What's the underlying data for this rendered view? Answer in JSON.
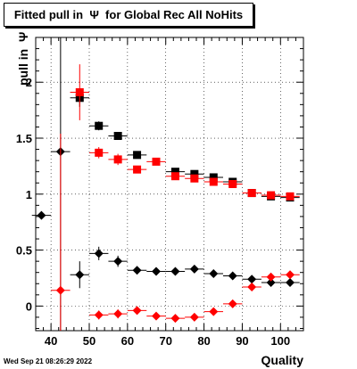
{
  "chart_data": {
    "type": "scatter",
    "title": "Fitted pull in  Ψ  for Global Rec All NoHits",
    "xlabel": "Quality",
    "ylabel": "pull in  Ψ",
    "xlim": [
      36,
      106
    ],
    "ylim": [
      -0.22,
      2.4
    ],
    "xticks": [
      40,
      50,
      60,
      70,
      80,
      90,
      100
    ],
    "yticks": [
      0,
      0.5,
      1,
      1.5,
      2
    ],
    "ytick_labels": [
      "0",
      "0.5",
      "1",
      "1.5",
      "2"
    ],
    "grid": true,
    "series": [
      {
        "marker": "square",
        "color": "#000000",
        "points": [
          {
            "x": 47.5,
            "y": 1.86,
            "ey": 0.08
          },
          {
            "x": 52.5,
            "y": 1.61,
            "ey": 0.04
          },
          {
            "x": 57.5,
            "y": 1.52,
            "ey": 0.03
          },
          {
            "x": 62.5,
            "y": 1.35,
            "ey": 0.02
          },
          {
            "x": 72.5,
            "y": 1.2,
            "ey": 0.02
          },
          {
            "x": 77.5,
            "y": 1.18,
            "ey": 0.02
          },
          {
            "x": 82.5,
            "y": 1.15,
            "ey": 0.02
          },
          {
            "x": 87.5,
            "y": 1.11,
            "ey": 0.02
          },
          {
            "x": 92.5,
            "y": 1.01,
            "ey": 0.02
          },
          {
            "x": 97.5,
            "y": 0.98,
            "ey": 0.02
          },
          {
            "x": 102.5,
            "y": 0.97,
            "ey": 0.02
          }
        ]
      },
      {
        "marker": "square",
        "color": "#ff0000",
        "points": [
          {
            "x": 47.5,
            "y": 1.91,
            "ey": 0.25
          },
          {
            "x": 52.5,
            "y": 1.37,
            "ey": 0.05
          },
          {
            "x": 57.5,
            "y": 1.31,
            "ey": 0.05
          },
          {
            "x": 62.5,
            "y": 1.22,
            "ey": 0.03
          },
          {
            "x": 67.5,
            "y": 1.29,
            "ey": 0.02
          },
          {
            "x": 72.5,
            "y": 1.16,
            "ey": 0.02
          },
          {
            "x": 77.5,
            "y": 1.14,
            "ey": 0.02
          },
          {
            "x": 82.5,
            "y": 1.11,
            "ey": 0.02
          },
          {
            "x": 87.5,
            "y": 1.09,
            "ey": 0.02
          },
          {
            "x": 92.5,
            "y": 1.01,
            "ey": 0.02
          },
          {
            "x": 97.5,
            "y": 0.99,
            "ey": 0.02
          },
          {
            "x": 102.5,
            "y": 0.98,
            "ey": 0.02
          }
        ]
      },
      {
        "marker": "diamond",
        "color": "#000000",
        "points": [
          {
            "x": 37.5,
            "y": 0.81,
            "ey": 0.02
          },
          {
            "x": 42.5,
            "y": 1.38,
            "ey": 1.6
          },
          {
            "x": 47.5,
            "y": 0.28,
            "ey": 0.12
          },
          {
            "x": 52.5,
            "y": 0.47,
            "ey": 0.06
          },
          {
            "x": 57.5,
            "y": 0.4,
            "ey": 0.05
          },
          {
            "x": 62.5,
            "y": 0.32,
            "ey": 0.02
          },
          {
            "x": 67.5,
            "y": 0.31,
            "ey": 0.02
          },
          {
            "x": 72.5,
            "y": 0.31,
            "ey": 0.02
          },
          {
            "x": 77.5,
            "y": 0.33,
            "ey": 0.02
          },
          {
            "x": 82.5,
            "y": 0.29,
            "ey": 0.02
          },
          {
            "x": 87.5,
            "y": 0.27,
            "ey": 0.02
          },
          {
            "x": 92.5,
            "y": 0.24,
            "ey": 0.02
          },
          {
            "x": 97.5,
            "y": 0.21,
            "ey": 0.02
          },
          {
            "x": 102.5,
            "y": 0.21,
            "ey": 0.02
          }
        ]
      },
      {
        "marker": "diamond",
        "color": "#ff0000",
        "points": [
          {
            "x": 42.5,
            "y": 0.14,
            "ey": 1.4
          },
          {
            "x": 52.5,
            "y": -0.08,
            "ey": 0.04
          },
          {
            "x": 57.5,
            "y": -0.07,
            "ey": 0.04
          },
          {
            "x": 62.5,
            "y": -0.04,
            "ey": 0.03
          },
          {
            "x": 67.5,
            "y": -0.09,
            "ey": 0.02
          },
          {
            "x": 72.5,
            "y": -0.11,
            "ey": 0.02
          },
          {
            "x": 77.5,
            "y": -0.1,
            "ey": 0.02
          },
          {
            "x": 82.5,
            "y": -0.05,
            "ey": 0.02
          },
          {
            "x": 87.5,
            "y": 0.02,
            "ey": 0.02
          },
          {
            "x": 92.5,
            "y": 0.17,
            "ey": 0.02
          },
          {
            "x": 97.5,
            "y": 0.26,
            "ey": 0.02
          },
          {
            "x": 102.5,
            "y": 0.28,
            "ey": 0.02
          }
        ]
      }
    ]
  },
  "footer": {
    "timestamp": "Wed Sep 21 08:26:29 2022"
  }
}
